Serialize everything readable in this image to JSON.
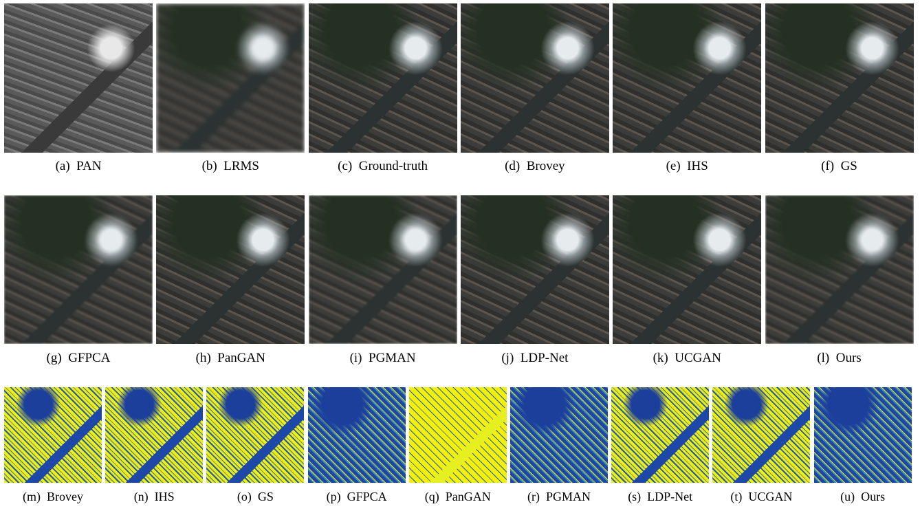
{
  "figure": {
    "rows": [
      {
        "panels": [
          "(a)  PAN",
          "(b)  LRMS",
          "(c)  Ground-truth",
          "(d)  Brovey",
          "(e)  IHS",
          "(f)  GS"
        ]
      },
      {
        "panels": [
          "(g)  GFPCA",
          "(h)  PanGAN",
          "(i)  PGMAN",
          "(j)  LDP-Net",
          "(k)  UCGAN",
          "(l)  Ours"
        ]
      },
      {
        "panels": [
          "(m)  Brovey",
          "(n)  IHS",
          "(o)  GS",
          "(p)  GFPCA",
          "(q)  PanGAN",
          "(r)  PGMAN",
          "(s)  LDP-Net",
          "(t)  UCGAN",
          "(u)  Ours"
        ]
      }
    ]
  }
}
